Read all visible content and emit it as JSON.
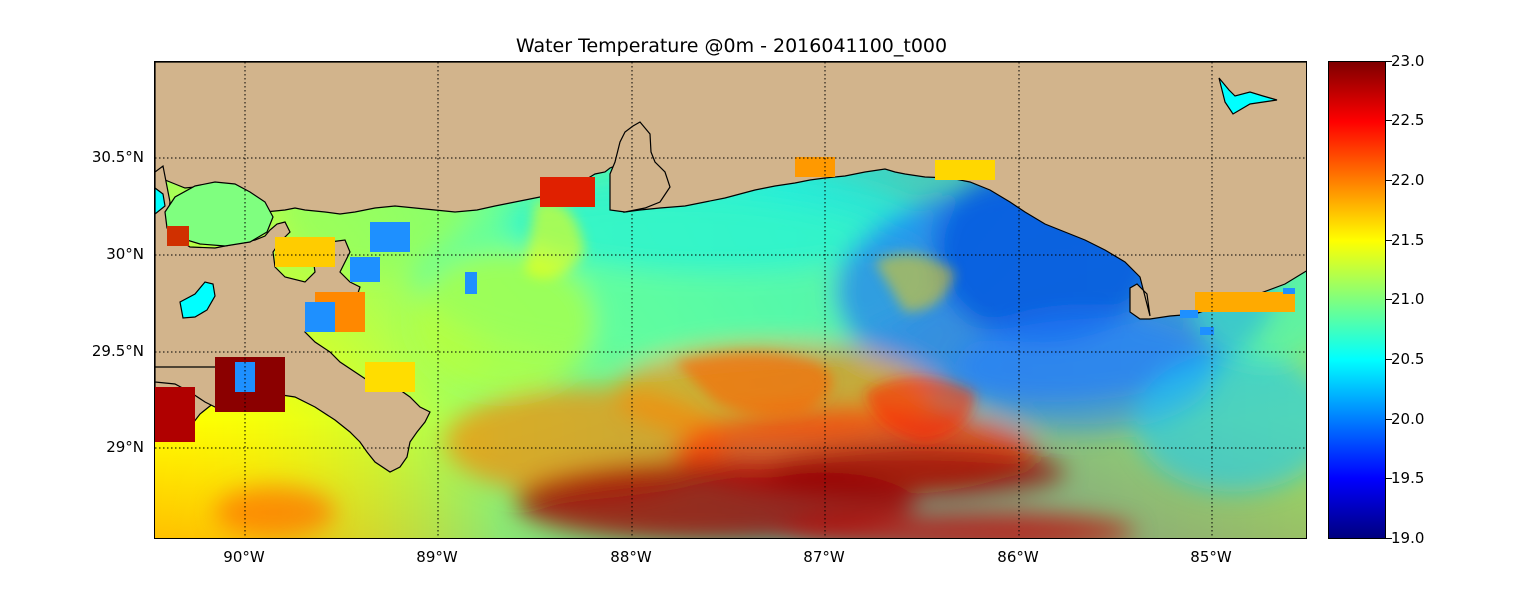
{
  "title": "Water Temperature @0m - 2016041100_t000",
  "map": {
    "lon_range": [
      -90.5,
      -84.5
    ],
    "lat_range": [
      28.55,
      31.0
    ],
    "y_ticks": [
      "30.5°N",
      "30°N",
      "29.5°N",
      "29°N"
    ],
    "x_ticks": [
      "90°W",
      "89°W",
      "88°W",
      "87°W",
      "86°W",
      "85°W"
    ],
    "grid": true,
    "land_color": "#d2b48c",
    "coastline_color": "#000000"
  },
  "colorbar": {
    "min": 19.0,
    "max": 23.0,
    "ticks": [
      "23.0",
      "22.5",
      "22.0",
      "21.5",
      "21.0",
      "20.5",
      "20.0",
      "19.5",
      "19.0"
    ],
    "colormap": "jet"
  }
}
